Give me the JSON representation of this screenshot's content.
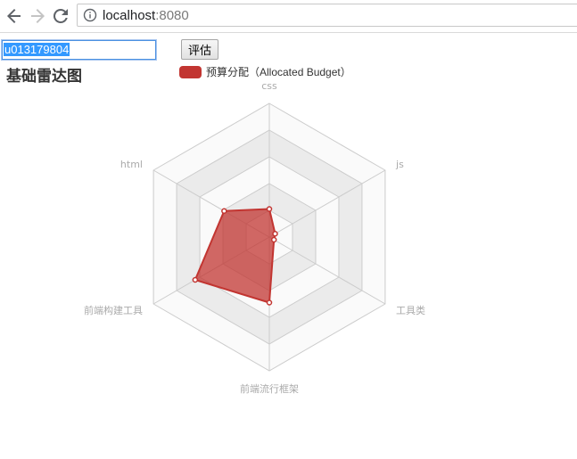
{
  "browser": {
    "url_host": "localhost",
    "url_port": ":8080"
  },
  "form": {
    "input_value": "u013179804",
    "button_label": "评估"
  },
  "chart_data": {
    "type": "radar",
    "title": "基础雷达图",
    "legend": [
      "预算分配（Allocated Budget）"
    ],
    "indicators": [
      {
        "name": "css",
        "max": 100
      },
      {
        "name": "js",
        "max": 100
      },
      {
        "name": "工具类",
        "max": 100
      },
      {
        "name": "前端流行框架",
        "max": 100
      },
      {
        "name": "前端构建工具",
        "max": 100
      },
      {
        "name": "html",
        "max": 100
      }
    ],
    "series": [
      {
        "name": "预算分配（Allocated Budget）",
        "values": [
          21,
          5,
          4,
          49,
          64,
          39
        ]
      }
    ],
    "split_number": 5,
    "colors": {
      "series": "#c23531",
      "area": "rgba(194,53,49,0.75)",
      "split_area_light": "#fafafa",
      "split_area_dark": "#ebebeb",
      "split_line": "#cccccc"
    }
  }
}
